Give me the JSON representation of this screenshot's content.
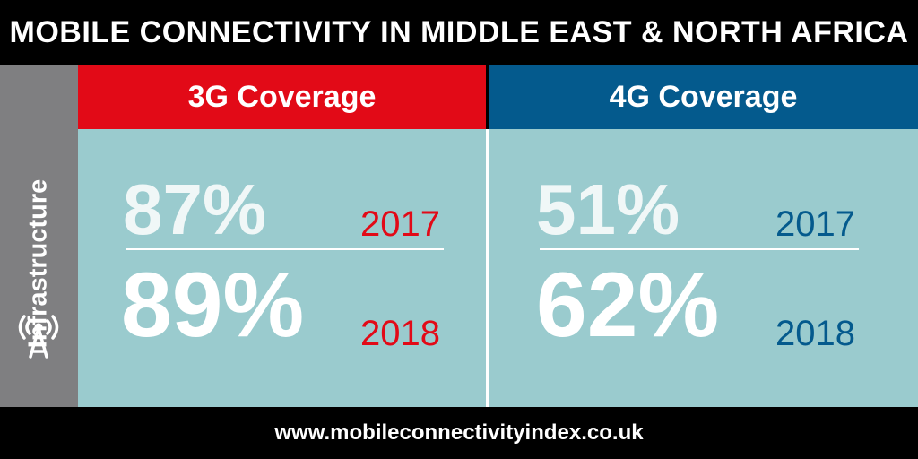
{
  "title": "MOBILE CONNECTIVITY IN MIDDLE EAST & NORTH AFRICA",
  "sidebar": {
    "label": "Infrastructure",
    "icon": "cell-tower-icon"
  },
  "panels": [
    {
      "header": "3G Coverage",
      "header_color": "#e20a17",
      "year_color": "#e20a17",
      "rows": [
        {
          "value": "87%",
          "year": "2017"
        },
        {
          "value": "89%",
          "year": "2018"
        }
      ]
    },
    {
      "header": "4G Coverage",
      "header_color": "#045a8d",
      "year_color": "#045a8d",
      "rows": [
        {
          "value": "51%",
          "year": "2017"
        },
        {
          "value": "62%",
          "year": "2018"
        }
      ]
    }
  ],
  "colors": {
    "background": "#000000",
    "sidebar": "#7f7f81",
    "panel_body": "#9acbce"
  },
  "footer": "www.mobileconnectivityindex.co.uk"
}
